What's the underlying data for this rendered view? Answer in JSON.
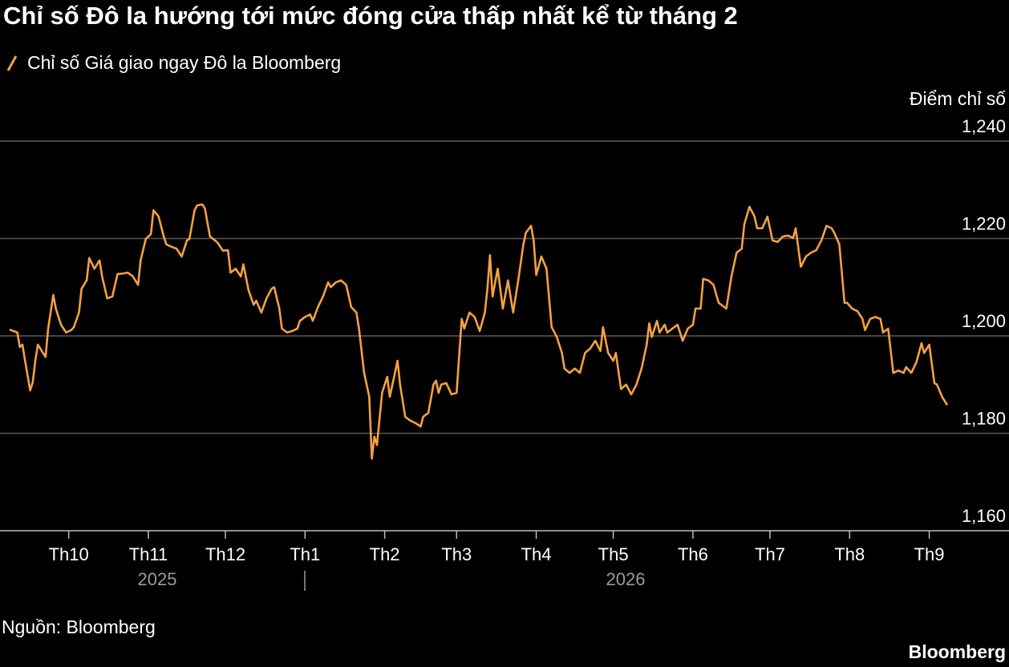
{
  "chart_data": {
    "type": "line",
    "title": "Chỉ số Đô la hướng tới mức đóng cửa thấp nhất kể từ tháng 2",
    "y_axis_label": "Điểm chỉ số",
    "source": "Nguồn: Bloomberg",
    "brand": "Bloomberg",
    "year_labels": [
      "2025",
      "2026"
    ],
    "x": [
      -23,
      -20,
      -19,
      -18,
      -17,
      -15,
      -14,
      -13,
      -12,
      -10,
      -9,
      -8,
      -6,
      -5,
      -3,
      -1,
      1,
      2,
      4,
      5,
      7,
      8,
      10,
      12,
      13,
      15,
      17,
      19,
      21,
      23,
      25,
      27,
      28,
      30,
      32,
      33,
      35,
      37,
      38,
      40,
      42,
      44,
      46,
      47,
      49,
      50,
      52,
      53,
      55,
      57,
      58,
      60,
      62,
      63,
      65,
      67,
      68,
      70,
      72,
      73,
      75,
      77,
      79,
      80,
      82,
      83,
      85,
      87,
      89,
      90,
      92,
      94,
      95,
      97,
      99,
      101,
      102,
      104,
      106,
      108,
      110,
      112,
      113,
      115,
      117,
      118,
      119,
      120,
      122,
      124,
      125,
      127,
      128,
      129,
      131,
      133,
      135,
      137,
      138,
      140,
      142,
      143,
      144,
      145,
      147,
      149,
      151,
      153,
      154,
      156,
      158,
      160,
      162,
      163,
      164,
      165,
      167,
      169,
      171,
      173,
      175,
      177,
      178,
      180,
      181,
      182,
      184,
      186,
      188,
      190,
      192,
      193,
      195,
      197,
      199,
      201,
      203,
      205,
      207,
      208,
      210,
      212,
      213,
      215,
      217,
      219,
      221,
      223,
      225,
      226,
      227,
      229,
      230,
      232,
      233,
      235,
      237,
      239,
      241,
      243,
      244,
      246,
      247,
      249,
      251,
      253,
      254,
      256,
      258,
      260,
      262,
      263,
      265,
      267,
      268,
      270,
      272,
      274,
      276,
      278,
      280,
      282,
      283,
      285,
      287,
      289,
      291,
      293,
      295,
      297,
      298,
      300,
      302,
      303,
      305,
      307,
      309,
      310,
      312,
      314,
      316,
      317,
      319,
      321,
      323,
      325,
      326,
      328,
      330,
      332,
      333,
      335,
      337,
      338,
      340,
      342
    ],
    "series": [
      {
        "name": "Chỉ số Giá giao ngay Đô la Bloomberg",
        "color": "#f4a143",
        "values": [
          1201.3,
          1200.7,
          1197.7,
          1198.2,
          1194.9,
          1188.8,
          1190.5,
          1194.9,
          1198.2,
          1196.5,
          1195.7,
          1201.5,
          1208.4,
          1205.6,
          1202.3,
          1200.7,
          1201.2,
          1201.8,
          1204.8,
          1209.7,
          1211.4,
          1216,
          1213.8,
          1215.5,
          1212.2,
          1207.7,
          1208.1,
          1212.7,
          1212.8,
          1213,
          1212.2,
          1210.5,
          1215.5,
          1219.9,
          1220.9,
          1225.8,
          1224.5,
          1220.4,
          1218.8,
          1218.3,
          1217.9,
          1216.3,
          1219.6,
          1219.9,
          1225.8,
          1226.8,
          1227,
          1226.2,
          1220.4,
          1219.6,
          1219.1,
          1217.5,
          1217.6,
          1213,
          1213.8,
          1212.2,
          1214.7,
          1209.4,
          1206.4,
          1207.2,
          1204.8,
          1207.7,
          1209.7,
          1210,
          1205.6,
          1201.5,
          1200.7,
          1201,
          1201.5,
          1203.1,
          1203.9,
          1204.4,
          1203.1,
          1205.9,
          1208.1,
          1211,
          1210,
          1211,
          1211.4,
          1210.5,
          1205.9,
          1204.8,
          1201.5,
          1192.4,
          1187.5,
          1174.8,
          1179.3,
          1177.6,
          1188.3,
          1191.6,
          1187.5,
          1192.4,
          1194.9,
          1190,
          1183.4,
          1182.6,
          1182.1,
          1181.4,
          1183.4,
          1184.2,
          1190,
          1190.8,
          1188.3,
          1190,
          1190.3,
          1188,
          1188.3,
          1203.5,
          1201.5,
          1204.8,
          1203.9,
          1201,
          1204.8,
          1209.7,
          1216.6,
          1208.1,
          1213.8,
          1205.6,
          1211.4,
          1204.8,
          1211.4,
          1218.8,
          1221.2,
          1222.6,
          1219.6,
          1212.5,
          1216.3,
          1213.8,
          1201.8,
          1199.8,
          1196.5,
          1193.3,
          1192.4,
          1193.3,
          1192.4,
          1196.5,
          1197.4,
          1199,
          1196.9,
          1201.8,
          1196.5,
          1194.9,
          1196.5,
          1189.1,
          1190,
          1188,
          1190,
          1193.3,
          1198.2,
          1202.6,
          1199.8,
          1203.1,
          1200.7,
          1202.3,
          1200.7,
          1201.5,
          1202.3,
          1199,
          1201.5,
          1202.3,
          1205.6,
          1205.6,
          1211.7,
          1211.4,
          1210.5,
          1206.8,
          1206.4,
          1205.6,
          1212.2,
          1217.1,
          1217.9,
          1222.9,
          1226.5,
          1224.5,
          1222.1,
          1222.1,
          1224.5,
          1219.6,
          1219.3,
          1220.4,
          1220.6,
          1220.1,
          1222.1,
          1214.2,
          1216.3,
          1217.1,
          1217.6,
          1219.6,
          1222.6,
          1222.1,
          1221.2,
          1218.8,
          1206.8,
          1206.8,
          1205.6,
          1205.1,
          1203.5,
          1201.2,
          1203.5,
          1203.9,
          1203.5,
          1200.7,
          1201.5,
          1192.4,
          1192.9,
          1192.4,
          1193.6,
          1192.4,
          1194.6,
          1198.5,
          1196.5,
          1198.2,
          1190.3,
          1190,
          1187.5,
          1185.8
        ]
      }
    ],
    "xlim": [
      -23,
      342
    ],
    "xticks": [
      {
        "value": 0,
        "label": "Th10"
      },
      {
        "value": 31,
        "label": "Th11"
      },
      {
        "value": 61,
        "label": "Th12"
      },
      {
        "value": 92,
        "label": "Th1"
      },
      {
        "value": 123,
        "label": "Th2"
      },
      {
        "value": 151,
        "label": "Th3"
      },
      {
        "value": 182,
        "label": "Th4"
      },
      {
        "value": 212,
        "label": "Th5"
      },
      {
        "value": 243,
        "label": "Th6"
      },
      {
        "value": 273,
        "label": "Th7"
      },
      {
        "value": 304,
        "label": "Th8"
      },
      {
        "value": 335,
        "label": "Th9"
      }
    ],
    "ylim": [
      1160,
      1240
    ],
    "yticks": [
      {
        "value": 1160,
        "label": "1,160"
      },
      {
        "value": 1180,
        "label": "1,180"
      },
      {
        "value": 1200,
        "label": "1,200"
      },
      {
        "value": 1220,
        "label": "1,220"
      },
      {
        "value": 1240,
        "label": "1,240"
      }
    ],
    "grid": true
  }
}
